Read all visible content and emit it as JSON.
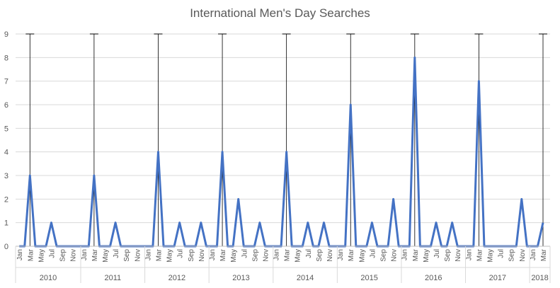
{
  "chart_data": {
    "type": "line",
    "title": "International Men's Day Searches",
    "xlabel": "",
    "ylabel": "",
    "ylim": [
      0,
      9
    ],
    "y_ticks": [
      0,
      1,
      2,
      3,
      4,
      5,
      6,
      7,
      8,
      9
    ],
    "grid": true,
    "legend": "none",
    "series_color": "#4472C4",
    "marker_line_color": "#000000",
    "month_labels": [
      "Jan",
      "Mar",
      "May",
      "Jul",
      "Sep",
      "Nov"
    ],
    "month_labels_2018": [
      "Jan",
      "Mar"
    ],
    "years": [
      "2010",
      "2011",
      "2012",
      "2013",
      "2014",
      "2015",
      "2016",
      "2017",
      "2018"
    ],
    "x_start": "2010-01",
    "x_end": "2018-03",
    "march_marker_years": [
      "2010",
      "2011",
      "2012",
      "2013",
      "2014",
      "2015",
      "2016",
      "2017",
      "2018"
    ],
    "series": [
      {
        "values": [
          0,
          0,
          3,
          0,
          0,
          0,
          1,
          0,
          0,
          0,
          0,
          0,
          0,
          0,
          3,
          0,
          0,
          0,
          1,
          0,
          0,
          0,
          0,
          0,
          0,
          0,
          4,
          0,
          0,
          0,
          1,
          0,
          0,
          0,
          1,
          0,
          0,
          0,
          4,
          0,
          0,
          2,
          0,
          0,
          0,
          1,
          0,
          0,
          0,
          0,
          4,
          0,
          0,
          0,
          1,
          0,
          0,
          1,
          0,
          0,
          0,
          0,
          6,
          0,
          0,
          0,
          1,
          0,
          0,
          0,
          2,
          0,
          0,
          0,
          8,
          0,
          0,
          0,
          1,
          0,
          0,
          1,
          0,
          0,
          0,
          0,
          7,
          0,
          0,
          0,
          0,
          0,
          0,
          0,
          2,
          0,
          0,
          0,
          1
        ]
      }
    ]
  }
}
